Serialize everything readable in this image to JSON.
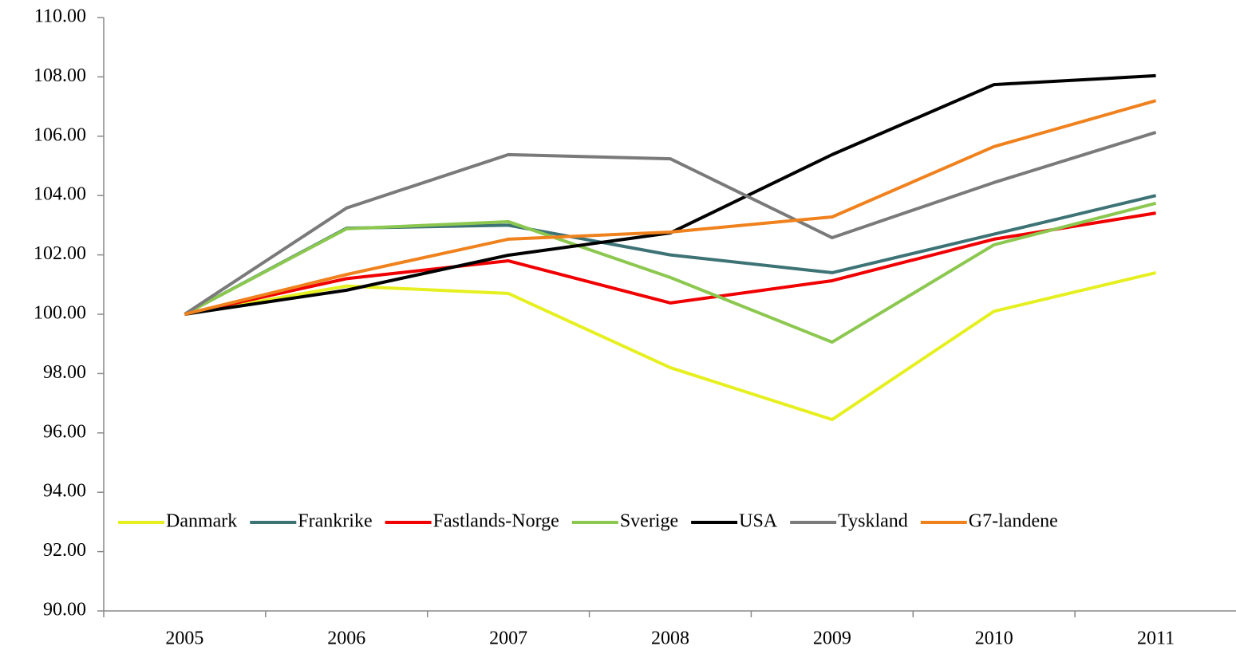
{
  "chart_data": {
    "type": "line",
    "categories": [
      "2005",
      "2006",
      "2007",
      "2008",
      "2009",
      "2010",
      "2011"
    ],
    "series": [
      {
        "name": "Danmark",
        "color": "#e6f020",
        "values": [
          100,
          100.95,
          100.7,
          98.2,
          96.45,
          100.1,
          101.4
        ]
      },
      {
        "name": "Frankrike",
        "color": "#3d7375",
        "values": [
          100,
          102.9,
          103.0,
          102.0,
          101.4,
          102.7,
          104.0
        ]
      },
      {
        "name": "Fastlands-Norge",
        "color": "#f00000",
        "values": [
          100,
          101.2,
          101.8,
          100.38,
          101.13,
          102.53,
          103.41
        ]
      },
      {
        "name": "Sverige",
        "color": "#8cc850",
        "values": [
          100,
          102.88,
          103.12,
          101.24,
          99.06,
          102.34,
          103.74
        ]
      },
      {
        "name": "USA",
        "color": "#000000",
        "values": [
          100,
          100.81,
          101.99,
          102.74,
          105.38,
          107.74,
          108.04
        ]
      },
      {
        "name": "Tyskland",
        "color": "#7a7a7a",
        "values": [
          100,
          103.58,
          105.38,
          105.24,
          102.58,
          104.44,
          106.13
        ]
      },
      {
        "name": "G7-landene",
        "color": "#f0821e",
        "values": [
          100,
          101.34,
          102.53,
          102.77,
          103.28,
          105.65,
          107.2
        ]
      }
    ],
    "ylim": [
      90,
      110
    ],
    "yticks": [
      {
        "value": 90,
        "label": "90.00"
      },
      {
        "value": 92,
        "label": "92.00"
      },
      {
        "value": 94,
        "label": "94.00"
      },
      {
        "value": 96,
        "label": "96.00"
      },
      {
        "value": 98,
        "label": "98.00"
      },
      {
        "value": 100,
        "label": "100.00"
      },
      {
        "value": 102,
        "label": "102.00"
      },
      {
        "value": 104,
        "label": "104.00"
      },
      {
        "value": 106,
        "label": "106.00"
      },
      {
        "value": 108,
        "label": "108.00"
      },
      {
        "value": 110,
        "label": "110.00"
      }
    ],
    "legend": "bottom"
  }
}
